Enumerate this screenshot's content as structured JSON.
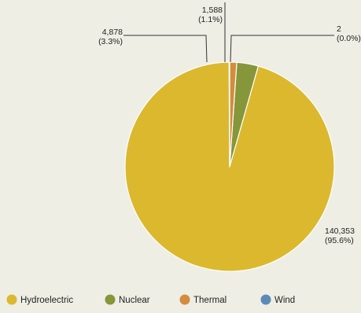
{
  "chart_data": {
    "type": "pie",
    "title": "",
    "series": [
      {
        "name": "Hydroelectric",
        "value": 140353,
        "value_label": "140,353",
        "pct_label": "(95.6%)",
        "color": "#dbb82e"
      },
      {
        "name": "Nuclear",
        "value": 4878,
        "value_label": "4,878",
        "pct_label": "(3.3%)",
        "color": "#86963a"
      },
      {
        "name": "Thermal",
        "value": 1588,
        "value_label": "1,588",
        "pct_label": "(1.1%)",
        "color": "#d38d3c"
      },
      {
        "name": "Wind",
        "value": 2,
        "value_label": "2",
        "pct_label": "(0.0%)",
        "color": "#5b8ab9"
      }
    ],
    "legend_position": "bottom",
    "start_angle": "top, counter-clockwise",
    "background": "#eeeee5"
  }
}
